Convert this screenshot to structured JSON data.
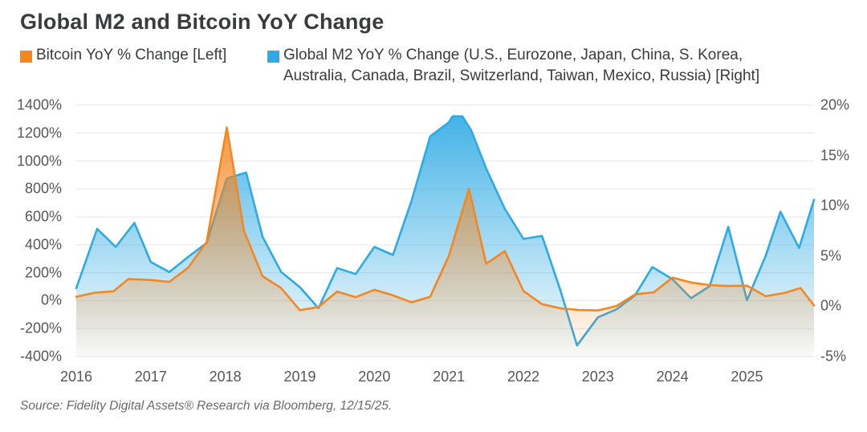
{
  "source_note": "Source: Fidelity Digital Assets® Research via Bloomberg, 12/15/25.",
  "legend": {
    "bitcoin_label": "Bitcoin YoY % Change [Left]",
    "m2_label_line1": "Global M2 YoY % Change (U.S., Eurozone, Japan, China, S. Korea,",
    "m2_label_line2": "Australia, Canada, Brazil, Switzerland, Taiwan, Mexico, Russia) [Right]"
  },
  "colors": {
    "bitcoin": "#F6861F",
    "m2": "#2EAAE4",
    "grid": "#E7E7E8",
    "title_text": "#3A3B3D",
    "tick_text": "#56575B",
    "source_text": "#68696D"
  },
  "chart_data": {
    "type": "area",
    "title": "Global M2 and Bitcoin YoY Change",
    "xlabel": "",
    "ylabel_left": "Bitcoin YoY % Change",
    "ylabel_right": "Global M2 YoY % Change",
    "grid": true,
    "legend_position": "top",
    "xlim": [
      2016,
      2025.9
    ],
    "x_ticks": [
      {
        "label": "2016",
        "t": 2016
      },
      {
        "label": "2017",
        "t": 2017
      },
      {
        "label": "2018",
        "t": 2018
      },
      {
        "label": "2019",
        "t": 2019
      },
      {
        "label": "2020",
        "t": 2020
      },
      {
        "label": "2021",
        "t": 2021
      },
      {
        "label": "2022",
        "t": 2022
      },
      {
        "label": "2023",
        "t": 2023
      },
      {
        "label": "2024",
        "t": 2024
      },
      {
        "label": "2025",
        "t": 2025
      }
    ],
    "axes": {
      "left": {
        "range": [
          -400,
          1400
        ],
        "ticks": [
          {
            "label": "1400%",
            "v": 1400
          },
          {
            "label": "1200%",
            "v": 1200
          },
          {
            "label": "1000%",
            "v": 1000
          },
          {
            "label": "800%",
            "v": 800
          },
          {
            "label": "600%",
            "v": 600
          },
          {
            "label": "400%",
            "v": 400
          },
          {
            "label": "200%",
            "v": 200
          },
          {
            "label": "0%",
            "v": 0
          },
          {
            "label": "-200%",
            "v": -200
          },
          {
            "label": "-400%",
            "v": -400
          }
        ]
      },
      "right": {
        "range": [
          -5,
          20
        ],
        "ticks": [
          {
            "label": "20%",
            "v": 20
          },
          {
            "label": "15%",
            "v": 15
          },
          {
            "label": "10%",
            "v": 10
          },
          {
            "label": "5%",
            "v": 5
          },
          {
            "label": "0%",
            "v": 0
          },
          {
            "label": "-5%",
            "v": -5
          }
        ]
      }
    },
    "series": [
      {
        "name": "Global M2 YoY % Change (U.S., Eurozone, Japan, China, S. Korea, Australia, Canada, Brazil, Switzerland, Taiwan, Mexico, Russia) [Right]",
        "axis": "right",
        "color": "#2EAAE4",
        "unit": "%",
        "points": [
          [
            2016.0,
            1.8
          ],
          [
            2016.28,
            7.7
          ],
          [
            2016.53,
            5.9
          ],
          [
            2016.78,
            8.3
          ],
          [
            2017.0,
            4.4
          ],
          [
            2017.25,
            3.4
          ],
          [
            2017.5,
            4.9
          ],
          [
            2017.75,
            6.3
          ],
          [
            2018.02,
            12.7
          ],
          [
            2018.1,
            12.9
          ],
          [
            2018.28,
            13.3
          ],
          [
            2018.5,
            6.9
          ],
          [
            2018.75,
            3.4
          ],
          [
            2019.0,
            1.9
          ],
          [
            2019.25,
            -0.2
          ],
          [
            2019.5,
            3.8
          ],
          [
            2019.75,
            3.2
          ],
          [
            2020.0,
            5.9
          ],
          [
            2020.25,
            5.1
          ],
          [
            2020.5,
            10.5
          ],
          [
            2020.75,
            16.9
          ],
          [
            2021.0,
            18.3
          ],
          [
            2021.05,
            18.9
          ],
          [
            2021.18,
            18.9
          ],
          [
            2021.3,
            17.5
          ],
          [
            2021.5,
            13.7
          ],
          [
            2021.75,
            9.7
          ],
          [
            2022.0,
            6.7
          ],
          [
            2022.25,
            7.0
          ],
          [
            2022.5,
            1.5
          ],
          [
            2022.72,
            -3.9
          ],
          [
            2023.0,
            -1.1
          ],
          [
            2023.25,
            -0.3
          ],
          [
            2023.5,
            1.1
          ],
          [
            2023.73,
            3.9
          ],
          [
            2024.0,
            2.7
          ],
          [
            2024.25,
            0.8
          ],
          [
            2024.5,
            2.0
          ],
          [
            2024.75,
            7.9
          ],
          [
            2025.0,
            0.6
          ],
          [
            2025.25,
            5.0
          ],
          [
            2025.45,
            9.4
          ],
          [
            2025.7,
            5.8
          ],
          [
            2025.9,
            10.6
          ]
        ]
      },
      {
        "name": "Bitcoin YoY % Change [Left]",
        "axis": "left",
        "color": "#F6861F",
        "unit": "%",
        "points": [
          [
            2016.0,
            28
          ],
          [
            2016.25,
            57
          ],
          [
            2016.5,
            67
          ],
          [
            2016.7,
            155
          ],
          [
            2017.0,
            148
          ],
          [
            2017.25,
            135
          ],
          [
            2017.5,
            235
          ],
          [
            2017.75,
            420
          ],
          [
            2018.02,
            1240
          ],
          [
            2018.25,
            500
          ],
          [
            2018.5,
            175
          ],
          [
            2018.75,
            90
          ],
          [
            2019.0,
            -68
          ],
          [
            2019.25,
            -45
          ],
          [
            2019.5,
            65
          ],
          [
            2019.75,
            25
          ],
          [
            2020.0,
            78
          ],
          [
            2020.25,
            38
          ],
          [
            2020.5,
            -12
          ],
          [
            2020.75,
            28
          ],
          [
            2021.0,
            320
          ],
          [
            2021.27,
            800
          ],
          [
            2021.5,
            265
          ],
          [
            2021.75,
            355
          ],
          [
            2022.0,
            70
          ],
          [
            2022.25,
            -25
          ],
          [
            2022.5,
            -55
          ],
          [
            2022.75,
            -67
          ],
          [
            2023.0,
            -70
          ],
          [
            2023.25,
            -38
          ],
          [
            2023.5,
            45
          ],
          [
            2023.75,
            60
          ],
          [
            2024.0,
            165
          ],
          [
            2024.25,
            130
          ],
          [
            2024.5,
            112
          ],
          [
            2024.75,
            105
          ],
          [
            2025.0,
            108
          ],
          [
            2025.25,
            32
          ],
          [
            2025.5,
            55
          ],
          [
            2025.72,
            90
          ],
          [
            2025.9,
            -35
          ]
        ]
      }
    ]
  }
}
